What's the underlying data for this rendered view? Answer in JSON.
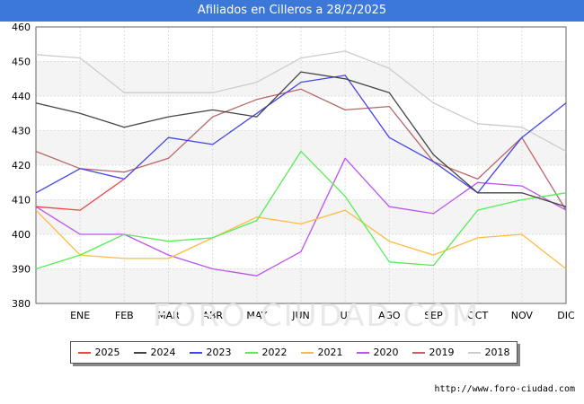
{
  "header": {
    "title": "Afiliados en Cilleros a 28/2/2025"
  },
  "watermark": "FORO-CIUDAD.COM",
  "source": "http://www.foro-ciudad.com",
  "chart_data": {
    "type": "line",
    "title": "Afiliados en Cilleros a 28/2/2025",
    "xlabel": "",
    "ylabel": "",
    "categories": [
      "",
      "ENE",
      "FEB",
      "MAR",
      "ABR",
      "MAY",
      "JUN",
      "JUL",
      "AGO",
      "SEP",
      "OCT",
      "NOV",
      "DIC"
    ],
    "ylim": [
      380,
      460
    ],
    "yticks": [
      380,
      390,
      400,
      410,
      420,
      430,
      440,
      450,
      460
    ],
    "grid": true,
    "legend_position": "bottom",
    "series": [
      {
        "name": "2025",
        "color": "#ee4444",
        "values": [
          408,
          407,
          416,
          null,
          null,
          null,
          null,
          null,
          null,
          null,
          null,
          null,
          null
        ]
      },
      {
        "name": "2024",
        "color": "#444444",
        "values": [
          438,
          435,
          431,
          434,
          436,
          434,
          447,
          445,
          441,
          423,
          412,
          412,
          408
        ]
      },
      {
        "name": "2023",
        "color": "#4444ee",
        "values": [
          412,
          419,
          416,
          428,
          426,
          435,
          444,
          446,
          428,
          421,
          412,
          428,
          438
        ]
      },
      {
        "name": "2022",
        "color": "#55ee55",
        "values": [
          390,
          394,
          400,
          398,
          399,
          404,
          424,
          411,
          392,
          391,
          407,
          410,
          412
        ]
      },
      {
        "name": "2021",
        "color": "#ffbb44",
        "values": [
          407,
          394,
          393,
          393,
          399,
          405,
          403,
          407,
          398,
          394,
          399,
          400,
          390
        ]
      },
      {
        "name": "2020",
        "color": "#bb55ee",
        "values": [
          408,
          400,
          400,
          394,
          390,
          388,
          395,
          422,
          408,
          406,
          415,
          414,
          407
        ]
      },
      {
        "name": "2019",
        "color": "#bb6666",
        "values": [
          424,
          419,
          418,
          422,
          434,
          439,
          442,
          436,
          437,
          421,
          416,
          428,
          407
        ]
      },
      {
        "name": "2018",
        "color": "#cccccc",
        "values": [
          452,
          451,
          441,
          441,
          441,
          444,
          451,
          453,
          448,
          438,
          432,
          431,
          424
        ]
      }
    ]
  }
}
